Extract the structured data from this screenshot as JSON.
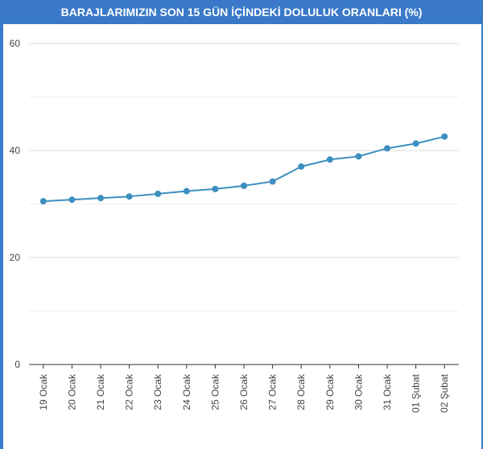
{
  "chart_data": {
    "type": "line",
    "title": "BARAJLARIMIZIN SON 15 GÜN İÇİNDEKİ DOLULUK ORANLARI (%)",
    "xlabel": "",
    "ylabel": "",
    "ylim": [
      0,
      60
    ],
    "yticks": [
      0,
      20,
      40,
      60
    ],
    "grid": true,
    "categories": [
      "19 Ocak",
      "20 Ocak",
      "21 Ocak",
      "22 Ocak",
      "23 Ocak",
      "24 Ocak",
      "25 Ocak",
      "26 Ocak",
      "27 Ocak",
      "28 Ocak",
      "29 Ocak",
      "30 Ocak",
      "31 Ocak",
      "01 Şubat",
      "02 Şubat"
    ],
    "series": [
      {
        "values": [
          30.5,
          30.8,
          31.1,
          31.4,
          31.9,
          32.4,
          32.8,
          33.4,
          34.2,
          37.0,
          38.3,
          38.9,
          40.4,
          41.3,
          42.6
        ]
      }
    ],
    "colors": {
      "line": "#3d8fc0",
      "header": "#3a79c9",
      "grid": "#d9d9d9"
    }
  }
}
